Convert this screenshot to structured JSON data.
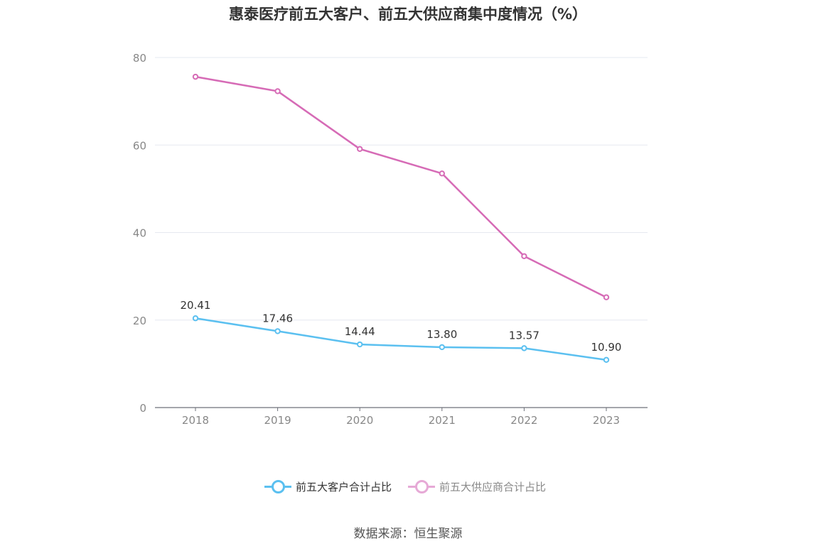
{
  "title": "惠泰医疗前五大客户、前五大供应商集中度情况（%）",
  "source": "数据来源：恒生聚源",
  "chart_data": {
    "type": "line",
    "title": "惠泰医疗前五大客户、前五大供应商集中度情况（%）",
    "xlabel": "",
    "ylabel": "",
    "categories": [
      "2018",
      "2019",
      "2020",
      "2021",
      "2022",
      "2023"
    ],
    "ylim": [
      0,
      80
    ],
    "yticks": [
      0,
      20,
      40,
      60,
      80
    ],
    "grid": true,
    "legend_position": "bottom",
    "series": [
      {
        "name": "前五大客户合计占比",
        "values": [
          20.41,
          17.46,
          14.44,
          13.8,
          13.57,
          10.9
        ],
        "labels": [
          "20.41",
          "17.46",
          "14.44",
          "13.80",
          "13.57",
          "10.90"
        ],
        "color": "#5bc0f0",
        "show_labels": true
      },
      {
        "name": "前五大供应商合计占比",
        "values": [
          75.6,
          72.3,
          59.1,
          53.5,
          34.6,
          25.2
        ],
        "color": "#d66bb6",
        "show_labels": false
      }
    ]
  },
  "legend": [
    {
      "label": "前五大客户合计占比",
      "color": "#5bc0f0"
    },
    {
      "label": "前五大供应商合计占比",
      "color": "#e6a9d6"
    }
  ]
}
